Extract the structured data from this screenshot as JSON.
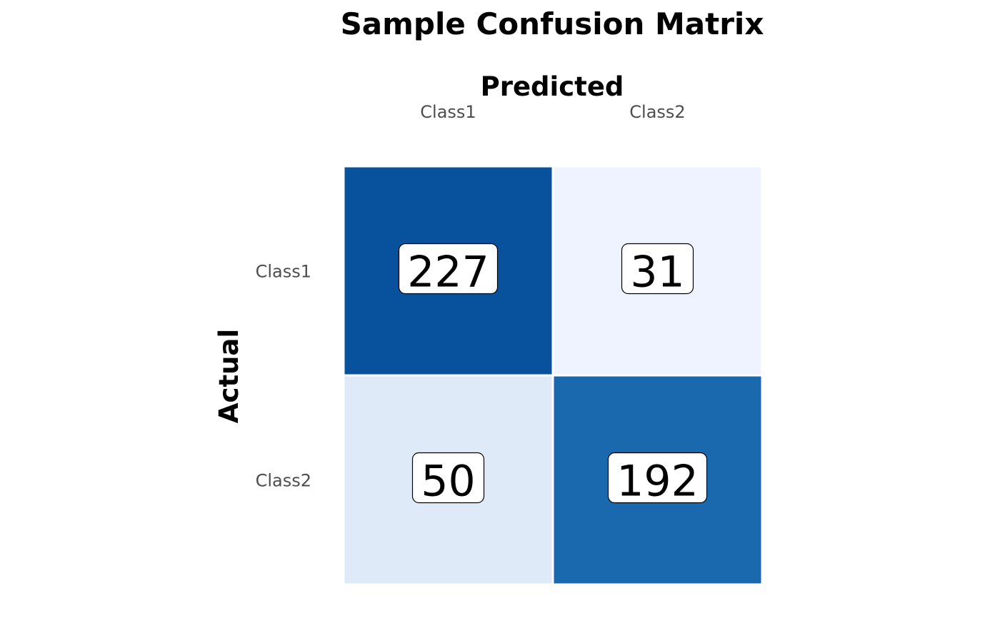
{
  "chart_data": {
    "type": "heatmap",
    "title": "Sample Confusion Matrix",
    "xlabel": "Predicted",
    "ylabel": "Actual",
    "x_categories": [
      "Class1",
      "Class2"
    ],
    "y_categories": [
      "Class1",
      "Class2"
    ],
    "values": [
      [
        227,
        31
      ],
      [
        50,
        192
      ]
    ],
    "color_scale": {
      "low": "#eff3ff",
      "high": "#08519c"
    },
    "x_axis_position": "top",
    "grid": false,
    "legend": "none"
  }
}
